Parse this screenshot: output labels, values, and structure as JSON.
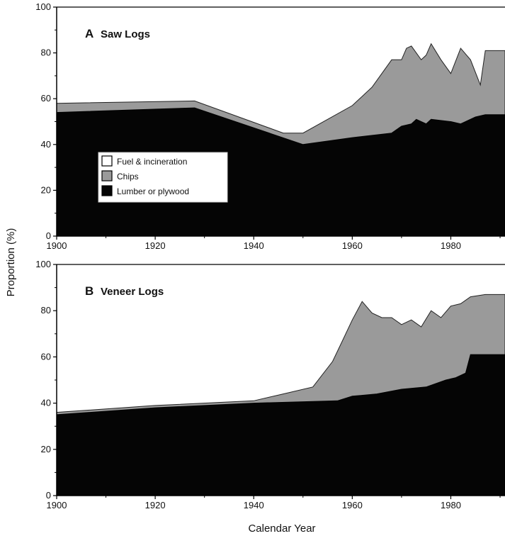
{
  "figure": {
    "ylabel": "Proportion (%)",
    "xlabel": "Calendar Year",
    "legend": {
      "placement": "lower-left of panel A",
      "entries": [
        {
          "label": "Fuel & incineration",
          "color": "#ffffff"
        },
        {
          "label": "Chips",
          "color": "#9a9a9a"
        },
        {
          "label": "Lumber or plywood",
          "color": "#050505"
        }
      ]
    }
  },
  "chart_data": [
    {
      "type": "area",
      "stacked": true,
      "panel_letter": "A",
      "title": "Saw Logs",
      "xlim": [
        1900,
        1991
      ],
      "ylim": [
        0,
        100
      ],
      "xticks": [
        1900,
        1920,
        1940,
        1960,
        1980
      ],
      "yticks": [
        0,
        20,
        40,
        60,
        80,
        100
      ],
      "grid": false,
      "colors": {
        "lumber": "#050505",
        "chips": "#9a9a9a"
      },
      "lumber": [
        [
          1900,
          54
        ],
        [
          1928,
          56
        ],
        [
          1950,
          40
        ],
        [
          1960,
          43
        ],
        [
          1968,
          45
        ],
        [
          1970,
          48
        ],
        [
          1972,
          49
        ],
        [
          1973,
          51
        ],
        [
          1975,
          49
        ],
        [
          1976,
          51
        ],
        [
          1980,
          50
        ],
        [
          1982,
          49
        ],
        [
          1985,
          52
        ],
        [
          1987,
          53
        ],
        [
          1991,
          53
        ]
      ],
      "total": [
        [
          1900,
          58
        ],
        [
          1928,
          59
        ],
        [
          1946,
          45
        ],
        [
          1950,
          45
        ],
        [
          1960,
          57
        ],
        [
          1964,
          65
        ],
        [
          1968,
          77
        ],
        [
          1970,
          77
        ],
        [
          1971,
          82
        ],
        [
          1972,
          83
        ],
        [
          1974,
          77
        ],
        [
          1975,
          79
        ],
        [
          1976,
          84
        ],
        [
          1978,
          77
        ],
        [
          1980,
          71
        ],
        [
          1982,
          82
        ],
        [
          1984,
          77
        ],
        [
          1986,
          66
        ],
        [
          1987,
          81
        ],
        [
          1991,
          81
        ]
      ]
    },
    {
      "type": "area",
      "stacked": true,
      "panel_letter": "B",
      "title": "Veneer Logs",
      "xlim": [
        1900,
        1991
      ],
      "ylim": [
        0,
        100
      ],
      "xticks": [
        1900,
        1920,
        1940,
        1960,
        1980
      ],
      "yticks": [
        0,
        20,
        40,
        60,
        80,
        100
      ],
      "grid": false,
      "colors": {
        "lumber": "#050505",
        "chips": "#9a9a9a"
      },
      "lumber": [
        [
          1900,
          35
        ],
        [
          1920,
          38
        ],
        [
          1940,
          40
        ],
        [
          1957,
          41
        ],
        [
          1960,
          43
        ],
        [
          1965,
          44
        ],
        [
          1970,
          46
        ],
        [
          1975,
          47
        ],
        [
          1979,
          50
        ],
        [
          1981,
          51
        ],
        [
          1983,
          53
        ],
        [
          1984,
          61
        ],
        [
          1991,
          61
        ]
      ],
      "total": [
        [
          1900,
          36
        ],
        [
          1920,
          39
        ],
        [
          1940,
          41
        ],
        [
          1946,
          44
        ],
        [
          1952,
          47
        ],
        [
          1956,
          58
        ],
        [
          1958,
          67
        ],
        [
          1960,
          76
        ],
        [
          1962,
          84
        ],
        [
          1964,
          79
        ],
        [
          1966,
          77
        ],
        [
          1968,
          77
        ],
        [
          1970,
          74
        ],
        [
          1972,
          76
        ],
        [
          1974,
          73
        ],
        [
          1976,
          80
        ],
        [
          1978,
          77
        ],
        [
          1980,
          82
        ],
        [
          1982,
          83
        ],
        [
          1984,
          86
        ],
        [
          1987,
          87
        ],
        [
          1991,
          87
        ]
      ]
    }
  ]
}
